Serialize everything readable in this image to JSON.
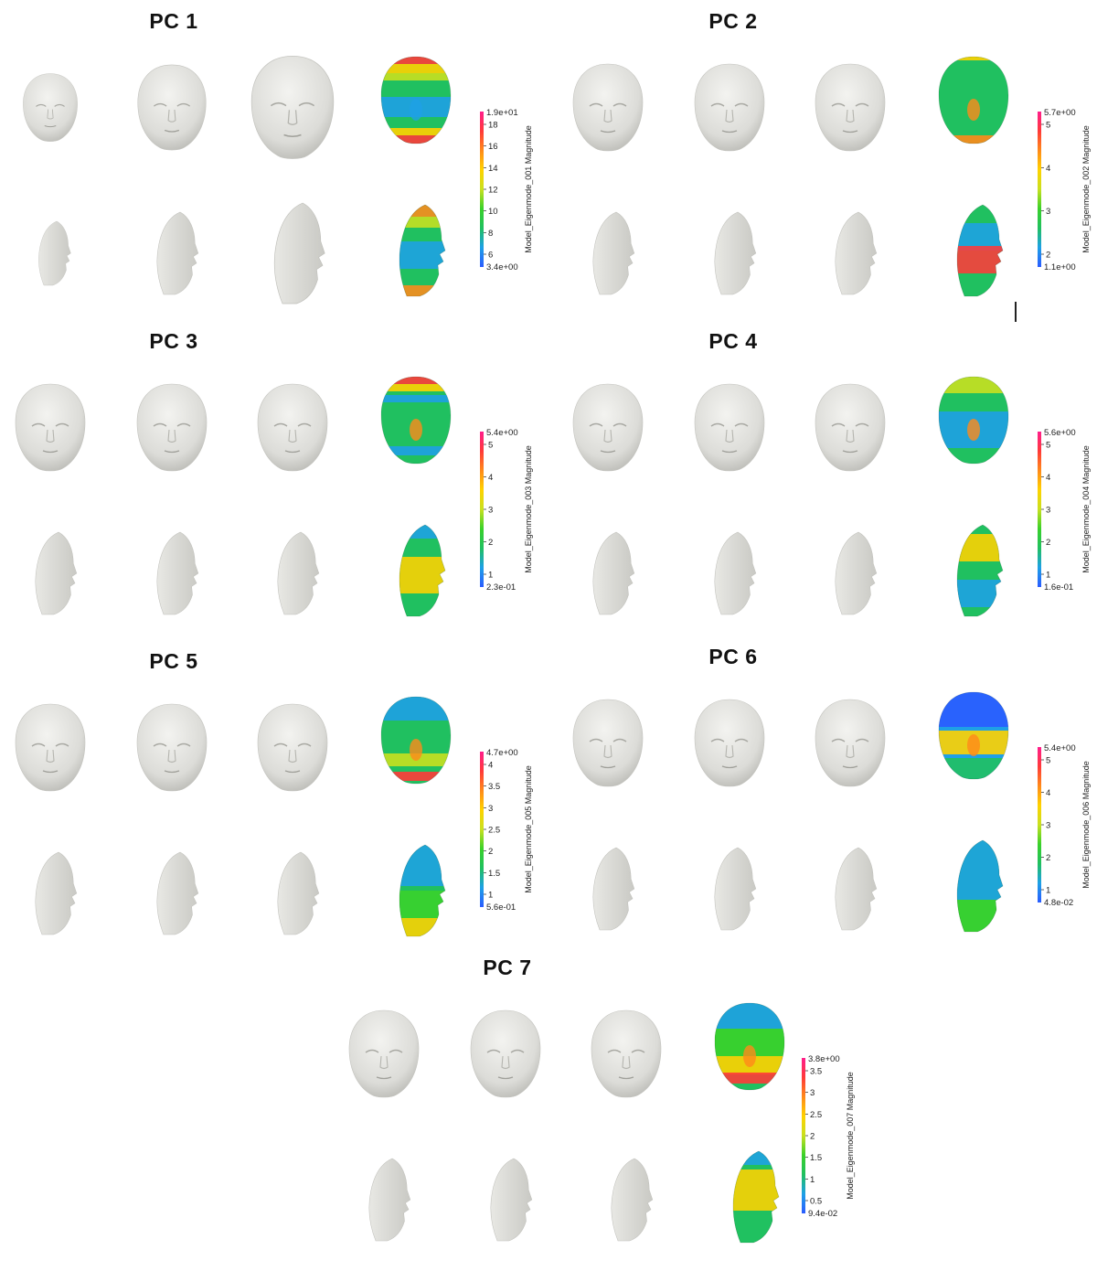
{
  "panels": [
    {
      "title": "PC 1",
      "cbar_label": "Model_Eigenmode_001 Magnitude",
      "max_label": "1.9e+01",
      "min_label": "3.4e+00",
      "ticks": [
        "18",
        "16",
        "14",
        "12",
        "10",
        "8",
        "6"
      ],
      "heatmap": "pc1"
    },
    {
      "title": "PC 2",
      "cbar_label": "Model_Eigenmode_002 Magnitude",
      "max_label": "5.7e+00",
      "min_label": "1.1e+00",
      "ticks": [
        "5",
        "4",
        "3",
        "2"
      ],
      "heatmap": "pc2"
    },
    {
      "title": "PC 3",
      "cbar_label": "Model_Eigenmode_003 Magnitude",
      "max_label": "5.4e+00",
      "min_label": "2.3e-01",
      "ticks": [
        "5",
        "4",
        "3",
        "2",
        "1"
      ],
      "heatmap": "pc3"
    },
    {
      "title": "PC 4",
      "cbar_label": "Model_Eigenmode_004 Magnitude",
      "max_label": "5.6e+00",
      "min_label": "1.6e-01",
      "ticks": [
        "5",
        "4",
        "3",
        "2",
        "1"
      ],
      "heatmap": "pc4"
    },
    {
      "title": "PC 5",
      "cbar_label": "Model_Eigenmode_005 Magnitude",
      "max_label": "4.7e+00",
      "min_label": "5.6e-01",
      "ticks": [
        "4",
        "3.5",
        "3",
        "2.5",
        "2",
        "1.5",
        "1"
      ],
      "heatmap": "pc5"
    },
    {
      "title": "PC 6",
      "cbar_label": "Model_Eigenmode_006 Magnitude",
      "max_label": "5.4e+00",
      "min_label": "4.8e-02",
      "ticks": [
        "5",
        "4",
        "3",
        "2",
        "1"
      ],
      "heatmap": "pc6"
    },
    {
      "title": "PC 7",
      "cbar_label": "Model_Eigenmode_007 Magnitude",
      "max_label": "3.8e+00",
      "min_label": "9.4e-02",
      "ticks": [
        "3.5",
        "3",
        "2.5",
        "2",
        "1.5",
        "1",
        "0.5"
      ],
      "heatmap": "pc7"
    }
  ],
  "colormap": [
    "#2a5bff",
    "#1ea0e6",
    "#20c060",
    "#3ad12a",
    "#c8e020",
    "#ffd200",
    "#ff8a1a",
    "#ff3a3a",
    "#ff1e8c"
  ],
  "face_color": "#dcdcd8"
}
